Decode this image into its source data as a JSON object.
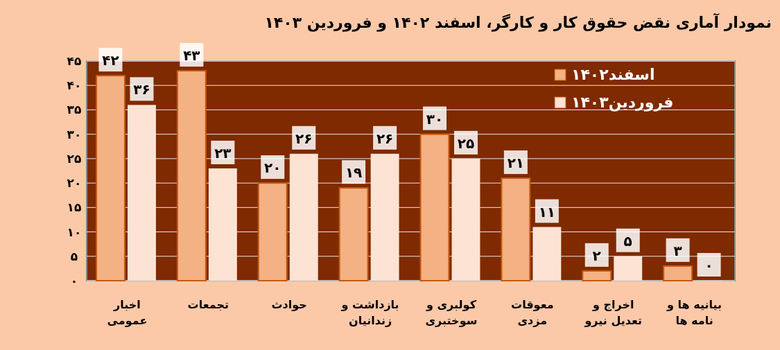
{
  "chart_data": {
    "type": "bar",
    "title": "نمودار آماری نقض حقوق کار و کارگر، اسفند ۱۴۰۲ و فروردین ۱۴۰۳",
    "categories": [
      "اخبار\nعمومی",
      "تجمعات",
      "حوادث",
      "بازداشت و\nزندانیان",
      "کولبری و\nسوختبری",
      "معوقات\nمزدی",
      "اخراج و\nتعدیل نیرو",
      "بیانیه ها و\nنامه ها"
    ],
    "series": [
      {
        "name": "اسفند۱۴۰۲",
        "color": "#f4b183",
        "values": [
          42,
          43,
          20,
          19,
          30,
          21,
          2,
          3
        ],
        "value_labels": [
          "۴۲",
          "۴۳",
          "۲۰",
          "۱۹",
          "۳۰",
          "۲۱",
          "۲",
          "۳"
        ]
      },
      {
        "name": "فروردین۱۴۰۳",
        "color": "#fde3d3",
        "values": [
          36,
          23,
          26,
          26,
          25,
          11,
          5,
          0
        ],
        "value_labels": [
          "۳۶",
          "۲۳",
          "۲۶",
          "۲۶",
          "۲۵",
          "۱۱",
          "۵",
          "۰"
        ]
      }
    ],
    "ylim": [
      0,
      45
    ],
    "yticks": [
      {
        "value": 0,
        "label": "۰"
      },
      {
        "value": 5,
        "label": "۵"
      },
      {
        "value": 10,
        "label": "۱۰"
      },
      {
        "value": 15,
        "label": "۱۵"
      },
      {
        "value": 20,
        "label": "۲۰"
      },
      {
        "value": 25,
        "label": "۲۵"
      },
      {
        "value": 30,
        "label": "۳۰"
      },
      {
        "value": 35,
        "label": "۳۵"
      },
      {
        "value": 40,
        "label": "۴۰"
      },
      {
        "value": 45,
        "label": "۴۵"
      }
    ],
    "grid": "y",
    "legend": "top right"
  }
}
